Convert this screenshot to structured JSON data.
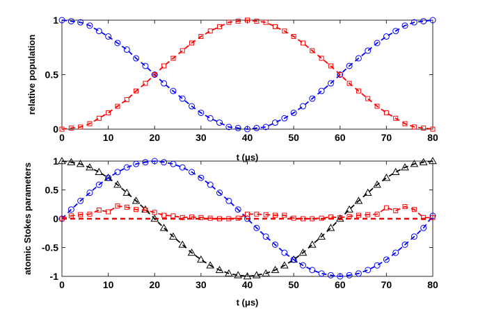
{
  "chart_data": [
    {
      "type": "line",
      "xlabel": "t (μs)",
      "ylabel": "relative population",
      "xlim": [
        0,
        80
      ],
      "ylim": [
        0,
        1
      ],
      "x_ticks": [
        0,
        10,
        20,
        30,
        40,
        50,
        60,
        70,
        80
      ],
      "y_ticks": [
        0,
        0.5,
        1
      ],
      "grid": false,
      "legend": "none",
      "series": [
        {
          "marker": "circle",
          "line": "dashed",
          "color": "#0000ff",
          "x": [
            0,
            2,
            4,
            6,
            8,
            10,
            12,
            14,
            16,
            18,
            20,
            22,
            24,
            26,
            28,
            30,
            32,
            34,
            36,
            38,
            40,
            42,
            44,
            46,
            48,
            50,
            52,
            54,
            56,
            58,
            60,
            62,
            64,
            66,
            68,
            70,
            72,
            74,
            76,
            78,
            80
          ],
          "y": [
            1.0,
            0.99,
            0.98,
            0.95,
            0.9,
            0.85,
            0.79,
            0.73,
            0.65,
            0.58,
            0.5,
            0.42,
            0.35,
            0.28,
            0.21,
            0.15,
            0.1,
            0.06,
            0.02,
            0.01,
            0.0,
            0.01,
            0.02,
            0.06,
            0.1,
            0.15,
            0.21,
            0.28,
            0.35,
            0.42,
            0.5,
            0.58,
            0.65,
            0.72,
            0.79,
            0.85,
            0.9,
            0.95,
            0.98,
            0.99,
            1.0
          ]
        },
        {
          "marker": "square",
          "line": "dashed",
          "color": "#ff0000",
          "x": [
            0,
            2,
            4,
            6,
            8,
            10,
            12,
            14,
            16,
            18,
            20,
            22,
            24,
            26,
            28,
            30,
            32,
            34,
            36,
            38,
            40,
            42,
            44,
            46,
            48,
            50,
            52,
            54,
            56,
            58,
            60,
            62,
            64,
            66,
            68,
            70,
            72,
            74,
            76,
            78,
            80
          ],
          "y": [
            0.0,
            0.01,
            0.02,
            0.05,
            0.1,
            0.15,
            0.21,
            0.27,
            0.35,
            0.42,
            0.5,
            0.58,
            0.65,
            0.72,
            0.79,
            0.85,
            0.9,
            0.94,
            0.98,
            0.99,
            1.0,
            0.99,
            0.98,
            0.94,
            0.9,
            0.85,
            0.79,
            0.72,
            0.65,
            0.58,
            0.5,
            0.42,
            0.35,
            0.28,
            0.21,
            0.15,
            0.1,
            0.05,
            0.02,
            0.01,
            0.0
          ]
        }
      ]
    },
    {
      "type": "line",
      "xlabel": "t (μs)",
      "ylabel": "atomic Stokes parameters",
      "xlim": [
        0,
        80
      ],
      "ylim": [
        -1,
        1
      ],
      "x_ticks": [
        0,
        10,
        20,
        30,
        40,
        50,
        60,
        70,
        80
      ],
      "y_ticks": [
        -1,
        -0.5,
        0,
        0.5,
        1
      ],
      "grid": false,
      "legend": "none",
      "series": [
        {
          "marker": "triangle",
          "line": "dashed",
          "color": "#000000",
          "x": [
            0,
            2,
            4,
            6,
            8,
            10,
            12,
            14,
            16,
            18,
            20,
            22,
            24,
            26,
            28,
            30,
            32,
            34,
            36,
            38,
            40,
            42,
            44,
            46,
            48,
            50,
            52,
            54,
            56,
            58,
            60,
            62,
            64,
            66,
            68,
            70,
            72,
            74,
            76,
            78,
            80
          ],
          "y": [
            1.0,
            0.98,
            0.95,
            0.89,
            0.81,
            0.71,
            0.59,
            0.45,
            0.31,
            0.16,
            0.0,
            -0.16,
            -0.31,
            -0.45,
            -0.59,
            -0.71,
            -0.81,
            -0.89,
            -0.95,
            -0.98,
            -1.0,
            -0.98,
            -0.95,
            -0.89,
            -0.81,
            -0.71,
            -0.59,
            -0.45,
            -0.31,
            -0.16,
            0.0,
            0.16,
            0.31,
            0.45,
            0.59,
            0.71,
            0.81,
            0.89,
            0.95,
            0.98,
            1.0
          ]
        },
        {
          "marker": "circle",
          "line": "dashed",
          "color": "#0000ff",
          "x": [
            0,
            2,
            4,
            6,
            8,
            10,
            12,
            14,
            16,
            18,
            20,
            22,
            24,
            26,
            28,
            30,
            32,
            34,
            36,
            38,
            40,
            42,
            44,
            46,
            48,
            50,
            52,
            54,
            56,
            58,
            60,
            62,
            64,
            66,
            68,
            70,
            72,
            74,
            76,
            78,
            80
          ],
          "y": [
            0.0,
            0.16,
            0.31,
            0.45,
            0.59,
            0.71,
            0.81,
            0.89,
            0.95,
            0.98,
            1.0,
            0.98,
            0.95,
            0.89,
            0.81,
            0.71,
            0.59,
            0.45,
            0.31,
            0.16,
            0.0,
            -0.16,
            -0.31,
            -0.45,
            -0.59,
            -0.71,
            -0.81,
            -0.89,
            -0.95,
            -0.98,
            -1.0,
            -0.98,
            -0.95,
            -0.89,
            -0.81,
            -0.71,
            -0.59,
            -0.45,
            -0.31,
            -0.16,
            0.05
          ]
        },
        {
          "marker": "square",
          "line": "dashed",
          "color": "#ff0000",
          "x": [
            0,
            2,
            4,
            6,
            8,
            10,
            12,
            14,
            16,
            18,
            20,
            22,
            24,
            26,
            28,
            30,
            32,
            34,
            36,
            38,
            40,
            42,
            44,
            46,
            48,
            50,
            52,
            54,
            56,
            58,
            60,
            62,
            64,
            66,
            68,
            70,
            72,
            74,
            76,
            78,
            80
          ],
          "y": [
            0.0,
            0.05,
            0.07,
            0.08,
            0.15,
            0.12,
            0.22,
            0.2,
            0.16,
            0.15,
            0.11,
            0.06,
            0.05,
            0.02,
            0.03,
            0.02,
            0.01,
            0.0,
            0.0,
            0.01,
            0.08,
            0.08,
            0.07,
            0.06,
            0.06,
            0.01,
            0.0,
            0.0,
            0.01,
            0.03,
            0.02,
            0.04,
            0.06,
            0.07,
            0.08,
            0.19,
            0.14,
            0.21,
            0.16,
            0.02,
            0.02
          ]
        }
      ],
      "fit_lines": [
        {
          "color": "#ff0000",
          "line": "dashed",
          "x": [
            0,
            80
          ],
          "y": [
            0,
            0
          ]
        }
      ]
    }
  ]
}
